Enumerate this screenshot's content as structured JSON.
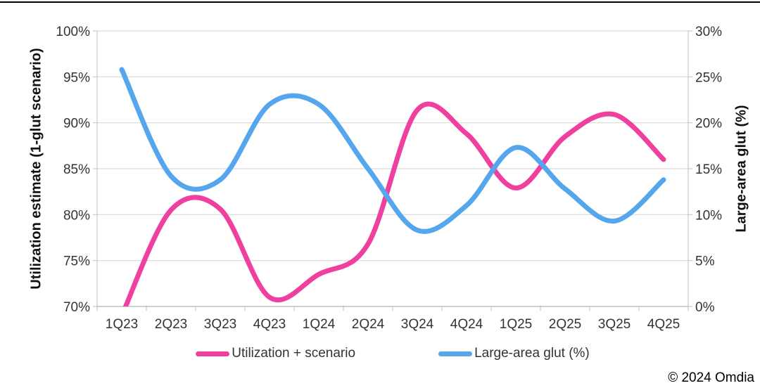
{
  "chart_data": {
    "type": "line",
    "categories": [
      "1Q23",
      "2Q23",
      "3Q23",
      "4Q23",
      "1Q24",
      "2Q24",
      "3Q24",
      "4Q24",
      "1Q25",
      "2Q25",
      "3Q25",
      "4Q25"
    ],
    "series": [
      {
        "name": "Utilization + scenario",
        "axis": "left",
        "color": "#EF3F9F",
        "values": [
          69,
          80.5,
          80.6,
          71,
          73.5,
          76.8,
          91.4,
          88.8,
          82.9,
          88.5,
          90.9,
          86
        ]
      },
      {
        "name": "Large-area glut (%)",
        "axis": "right",
        "color": "#55A6EC",
        "values": [
          25.8,
          14.2,
          13.8,
          22,
          22,
          15,
          8.3,
          11,
          17.3,
          12.8,
          9.3,
          13.8
        ]
      }
    ],
    "left_axis": {
      "label": "Utilization estimate (1-glut scenario)",
      "min": 70,
      "max": 100,
      "ticks": [
        "70%",
        "75%",
        "80%",
        "85%",
        "90%",
        "95%",
        "100%"
      ]
    },
    "right_axis": {
      "label": "Large-area glut (%)",
      "min": 0,
      "max": 30,
      "ticks": [
        "0%",
        "5%",
        "10%",
        "15%",
        "20%",
        "25%",
        "30%"
      ]
    },
    "grid": true,
    "legend_position": "bottom",
    "smooth": true,
    "colors": {
      "grid": "#D9D9D9",
      "axis": "#BFBFBF",
      "tick_text": "#333333"
    }
  },
  "footer": {
    "copyright": "© 2024 Omdia"
  }
}
